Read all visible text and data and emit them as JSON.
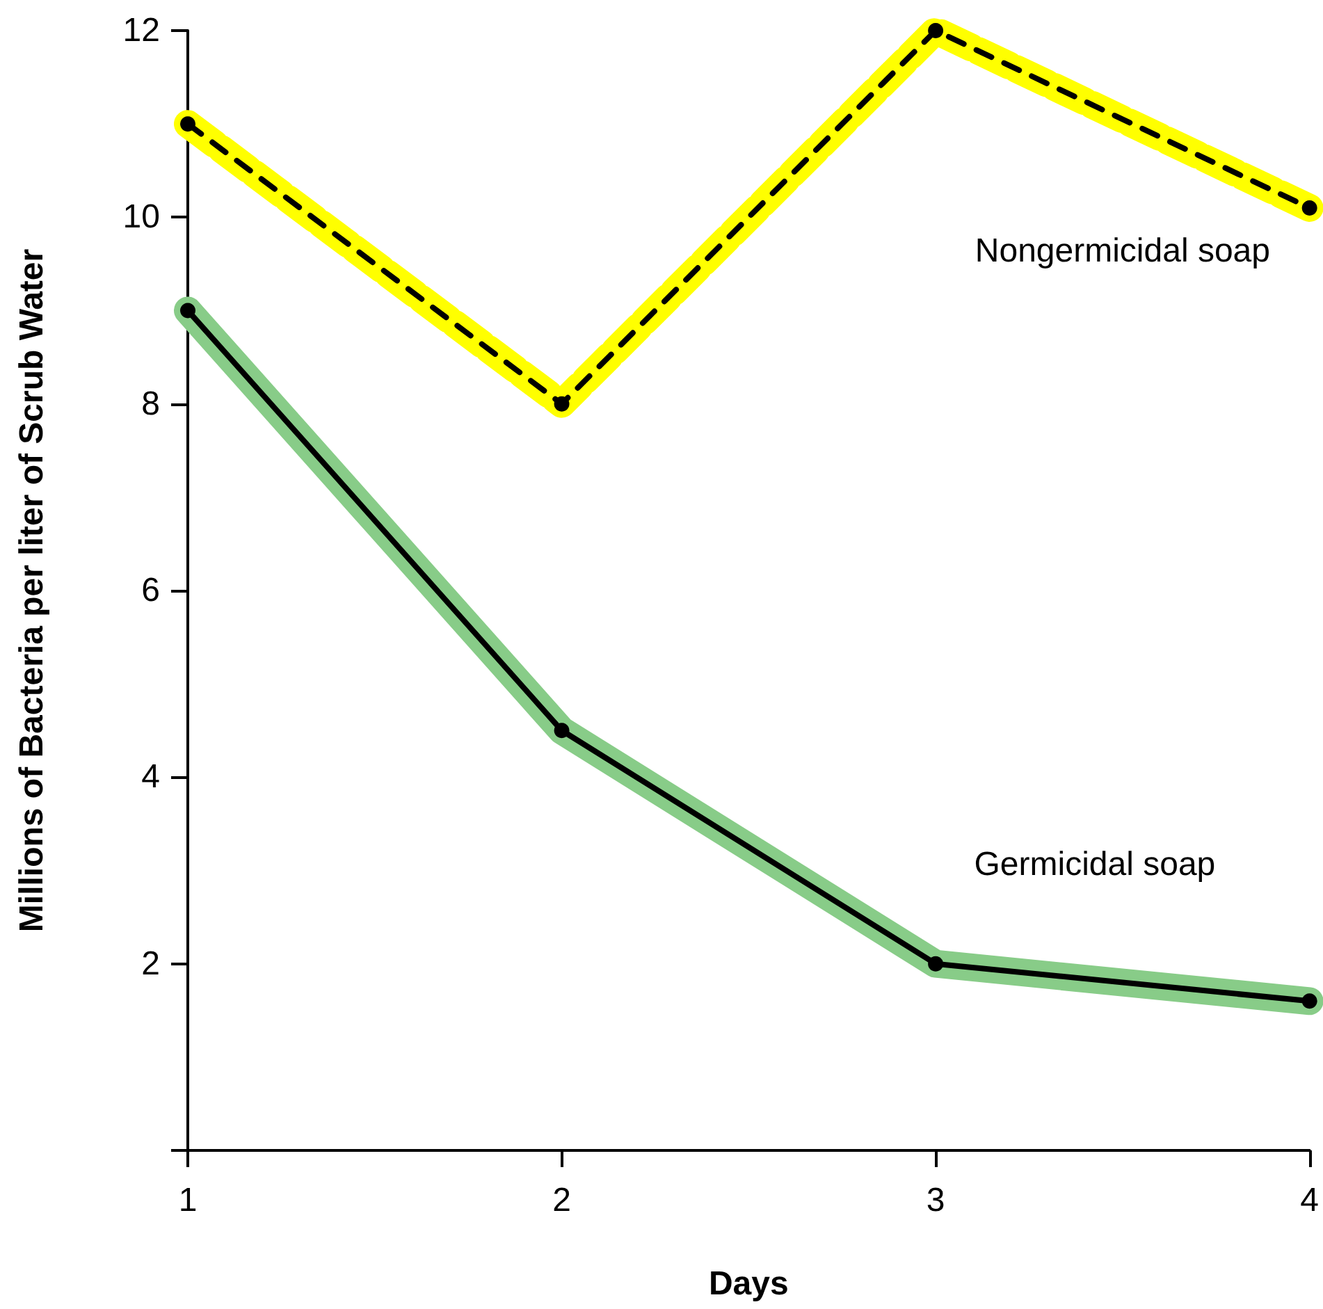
{
  "chart_data": {
    "type": "line",
    "xlabel": "Days",
    "ylabel": "Millions of Bacteria per liter of Scrub Water",
    "x": [
      1,
      2,
      3,
      4
    ],
    "series": [
      {
        "name": "Nongermicidal soap",
        "color": "#ffff00",
        "values": [
          11,
          8,
          12,
          10.1
        ],
        "line_style": "dashed"
      },
      {
        "name": "Germicidal soap",
        "color": "#88cc88",
        "values": [
          9,
          4.5,
          2,
          1.6
        ],
        "line_style": "solid"
      }
    ],
    "xlim": [
      1,
      4
    ],
    "xticks": [
      1,
      2,
      3,
      4
    ],
    "ylim": [
      0,
      12
    ],
    "yticks": [
      {
        "value": 0,
        "label": null
      },
      2,
      4,
      6,
      8,
      10,
      12
    ],
    "grid": false,
    "legend": false,
    "marker": "circle"
  }
}
